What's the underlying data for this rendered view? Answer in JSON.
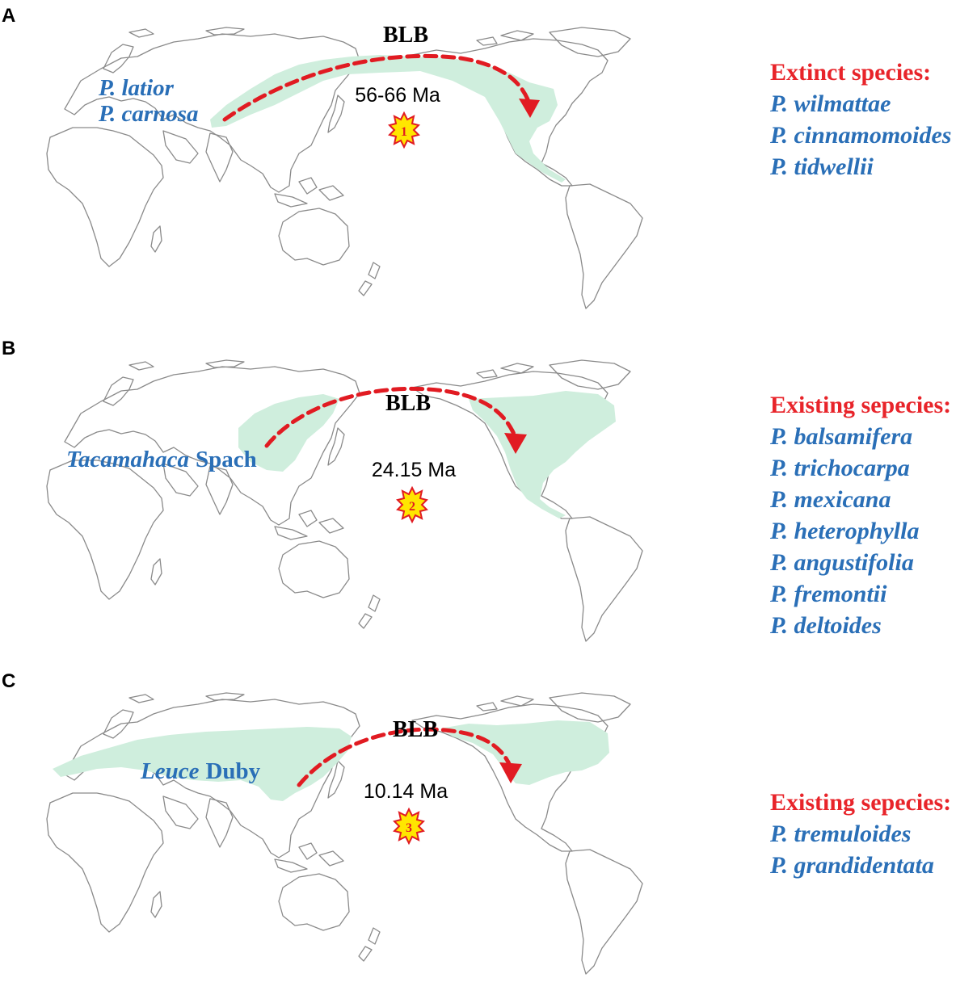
{
  "panels": [
    {
      "label": "A",
      "strait": "BLB",
      "age": "56-66 Ma",
      "event_number": "1",
      "source_taxa": [
        {
          "name": "P. latior",
          "italic": true
        },
        {
          "name": "P. carnosa",
          "italic": true
        }
      ],
      "species_heading": "Extinct species:",
      "species": [
        "P. wilmattae",
        "P. cinnamomoides",
        "P. tidwellii"
      ]
    },
    {
      "label": "B",
      "strait": "BLB",
      "age": "24.15 Ma",
      "event_number": "2",
      "source_taxa": [
        {
          "genus": "Tacamahaca",
          "author": "Spach"
        }
      ],
      "species_heading": "Existing sepecies:",
      "species": [
        "P. balsamifera",
        "P. trichocarpa",
        "P. mexicana",
        "P. heterophylla",
        "P. angustifolia",
        "P. fremontii",
        "P. deltoides"
      ]
    },
    {
      "label": "C",
      "strait": "BLB",
      "age": "10.14 Ma",
      "event_number": "3",
      "source_taxa": [
        {
          "genus": "Leuce",
          "author": "Duby"
        }
      ],
      "species_heading": "Existing sepecies:",
      "species": [
        "P. tremuloides",
        "P. grandidentata"
      ]
    }
  ],
  "colors": {
    "distribution_fill": "#cfeedd",
    "arrow": "#e11b22",
    "taxon_text": "#2a6fb7",
    "heading_text": "#e8242a",
    "badge_fill": "#ffe600",
    "badge_stroke": "#e11b22",
    "coastline": "#8a8a8a"
  }
}
